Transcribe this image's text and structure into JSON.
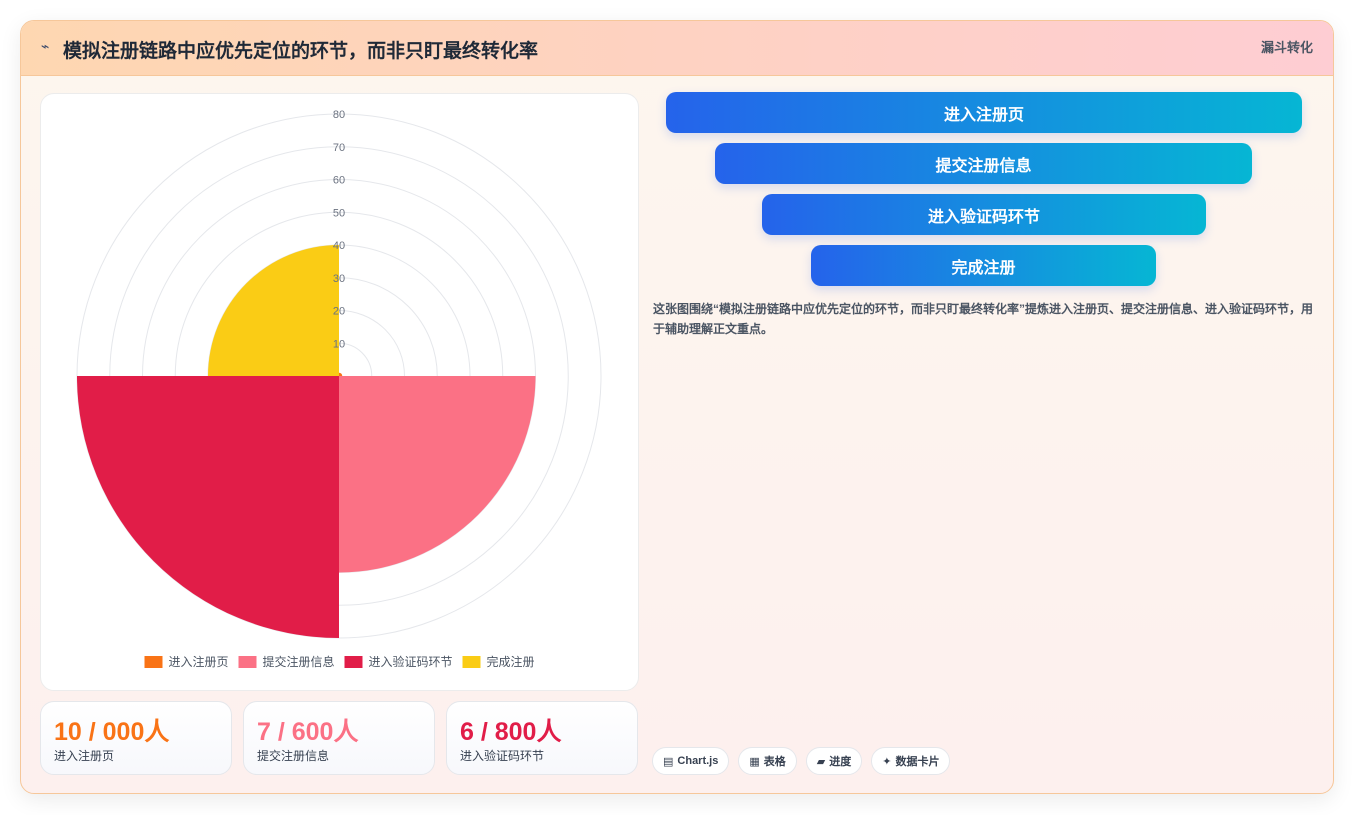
{
  "header": {
    "icon": "chart-icon",
    "title": "模拟注册链路中应优先定位的环节，而非只盯最终转化率",
    "tag": "漏斗转化"
  },
  "chart_data": {
    "type": "polarArea",
    "categories": [
      "进入注册页",
      "提交注册信息",
      "进入验证码环节",
      "完成注册"
    ],
    "values": [
      1,
      60,
      80,
      40
    ],
    "colors": [
      "#f97316",
      "#fb7185",
      "#e11d48",
      "#facc15"
    ],
    "rlim": [
      0,
      80
    ],
    "ticks": [
      10,
      20,
      30,
      40,
      50,
      60,
      70,
      80
    ],
    "legend": "bottom"
  },
  "stats": [
    {
      "value": "10 / 000人",
      "label": "进入注册页",
      "color": "#f97316"
    },
    {
      "value": "7 / 600人",
      "label": "提交注册信息",
      "color": "#fb7185"
    },
    {
      "value": "6 / 800人",
      "label": "进入验证码环节",
      "color": "#e11d48"
    }
  ],
  "funnel": [
    {
      "label": "进入注册页"
    },
    {
      "label": "提交注册信息"
    },
    {
      "label": "进入验证码环节"
    },
    {
      "label": "完成注册"
    }
  ],
  "description": "这张图围绕“模拟注册链路中应优先定位的环节，而非只盯最终转化率”提炼进入注册页、提交注册信息、进入验证码环节，用于辅助理解正文重点。",
  "chips": [
    {
      "icon": "chart-icon",
      "label": "Chart.js"
    },
    {
      "icon": "table-icon",
      "label": "表格"
    },
    {
      "icon": "progress-icon",
      "label": "进度"
    },
    {
      "icon": "sparkle-icon",
      "label": "数据卡片"
    }
  ]
}
